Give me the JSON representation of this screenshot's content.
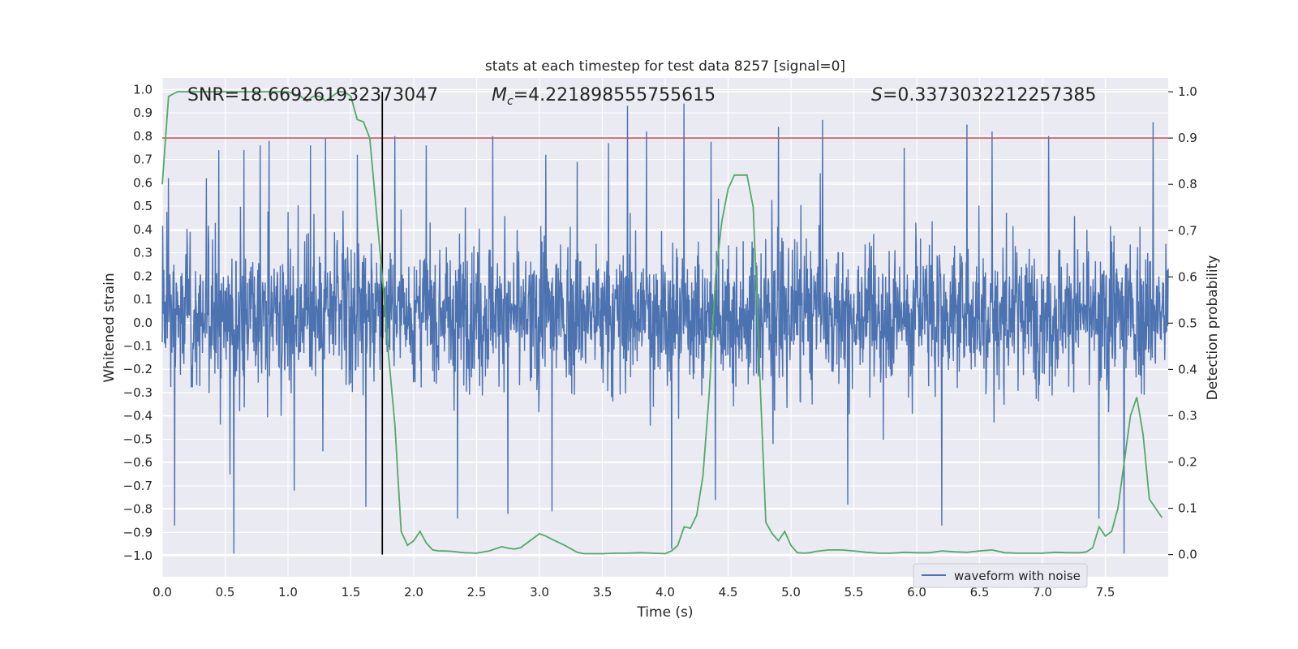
{
  "chart_data": {
    "type": "line",
    "title": "stats at each timestep for test data 8257 [signal=0]",
    "xlabel": "Time (s)",
    "ylabel_left": "Whitened strain",
    "ylabel_right": "Detection probability",
    "xlim": [
      0.0,
      8.0
    ],
    "ylim_left": [
      -1.09,
      1.05
    ],
    "ylim_right": [
      -0.048,
      1.03
    ],
    "x_ticks": [
      "0.0",
      "0.5",
      "1.0",
      "1.5",
      "2.0",
      "2.5",
      "3.0",
      "3.5",
      "4.0",
      "4.5",
      "5.0",
      "5.5",
      "6.0",
      "6.5",
      "7.0",
      "7.5"
    ],
    "y_left_ticks": [
      "1.0",
      "0.9",
      "0.8",
      "0.7",
      "0.6",
      "0.5",
      "0.4",
      "0.3",
      "0.2",
      "0.1",
      "0.0",
      "-0.1",
      "-0.2",
      "-0.3",
      "-0.4",
      "-0.5",
      "-0.6",
      "-0.7",
      "-0.8",
      "-0.9",
      "-1.0"
    ],
    "y_right_ticks": [
      "1.0",
      "0.9",
      "0.8",
      "0.7",
      "0.6",
      "0.5",
      "0.4",
      "0.3",
      "0.2",
      "0.1",
      "0.0"
    ],
    "annotations": {
      "snr": "SNR=18.669261932373047",
      "mc_symbol": "M",
      "mc_sub": "c",
      "mc_value": "=4.221898555755615",
      "s_symbol": "S",
      "s_value": "=0.3373032212257385"
    },
    "threshold": {
      "value": 0.9,
      "axis": "right",
      "color": "#c44e52"
    },
    "marker_time": 1.75,
    "legend": {
      "label": "waveform with noise",
      "placement": "lower-right"
    },
    "series": [
      {
        "name": "waveform with noise",
        "axis": "left",
        "color": "#4c72b0",
        "description": "dense whitened strain noise, typical envelope +/-0.6, peaks near +/-1.0",
        "envelope_typical": [
          -0.5,
          0.6
        ],
        "peaks": [
          {
            "x": 0.05,
            "y": 0.62
          },
          {
            "x": 0.1,
            "y": -0.87
          },
          {
            "x": 0.35,
            "y": 0.62
          },
          {
            "x": 0.45,
            "y": 0.74
          },
          {
            "x": 0.57,
            "y": -0.99
          },
          {
            "x": 0.65,
            "y": 0.74
          },
          {
            "x": 0.78,
            "y": 0.76
          },
          {
            "x": 0.85,
            "y": 0.78
          },
          {
            "x": 1.05,
            "y": -0.72
          },
          {
            "x": 1.18,
            "y": 0.76
          },
          {
            "x": 1.3,
            "y": 0.79
          },
          {
            "x": 1.55,
            "y": 0.72
          },
          {
            "x": 1.62,
            "y": -0.79
          },
          {
            "x": 1.85,
            "y": 0.8
          },
          {
            "x": 2.1,
            "y": 0.76
          },
          {
            "x": 2.35,
            "y": -0.84
          },
          {
            "x": 2.63,
            "y": 0.8
          },
          {
            "x": 2.75,
            "y": -0.82
          },
          {
            "x": 3.05,
            "y": 0.72
          },
          {
            "x": 3.1,
            "y": -0.81
          },
          {
            "x": 3.3,
            "y": 0.69
          },
          {
            "x": 3.55,
            "y": 0.77
          },
          {
            "x": 3.7,
            "y": 0.93
          },
          {
            "x": 3.85,
            "y": 0.82
          },
          {
            "x": 4.05,
            "y": -0.97
          },
          {
            "x": 4.15,
            "y": 0.94
          },
          {
            "x": 4.4,
            "y": -0.76
          },
          {
            "x": 4.9,
            "y": 0.84
          },
          {
            "x": 5.25,
            "y": 0.87
          },
          {
            "x": 5.45,
            "y": -0.78
          },
          {
            "x": 5.9,
            "y": 0.75
          },
          {
            "x": 6.2,
            "y": -0.87
          },
          {
            "x": 6.4,
            "y": 0.85
          },
          {
            "x": 6.6,
            "y": 0.82
          },
          {
            "x": 7.05,
            "y": 0.8
          },
          {
            "x": 7.45,
            "y": -0.84
          },
          {
            "x": 7.65,
            "y": -0.99
          },
          {
            "x": 7.88,
            "y": 0.86
          }
        ]
      },
      {
        "name": "detection probability",
        "axis": "right",
        "color": "#55a868",
        "x": [
          0.0,
          0.05,
          0.12,
          0.2,
          0.3,
          0.4,
          0.5,
          0.6,
          0.7,
          0.8,
          0.9,
          1.0,
          1.1,
          1.15,
          1.2,
          1.25,
          1.3,
          1.35,
          1.4,
          1.45,
          1.5,
          1.55,
          1.6,
          1.65,
          1.7,
          1.75,
          1.8,
          1.85,
          1.9,
          1.95,
          2.0,
          2.05,
          2.1,
          2.15,
          2.2,
          2.25,
          2.3,
          2.4,
          2.5,
          2.6,
          2.7,
          2.75,
          2.8,
          2.85,
          2.9,
          2.95,
          3.0,
          3.05,
          3.1,
          3.2,
          3.3,
          3.35,
          3.4,
          3.5,
          3.6,
          3.7,
          3.8,
          3.9,
          4.0,
          4.05,
          4.1,
          4.15,
          4.2,
          4.25,
          4.3,
          4.35,
          4.4,
          4.45,
          4.5,
          4.55,
          4.6,
          4.65,
          4.7,
          4.75,
          4.8,
          4.85,
          4.9,
          4.95,
          5.0,
          5.05,
          5.1,
          5.15,
          5.2,
          5.3,
          5.4,
          5.5,
          5.6,
          5.7,
          5.8,
          5.9,
          6.0,
          6.1,
          6.2,
          6.3,
          6.4,
          6.5,
          6.6,
          6.7,
          6.8,
          6.9,
          7.0,
          7.1,
          7.2,
          7.3,
          7.35,
          7.4,
          7.45,
          7.5,
          7.55,
          7.6,
          7.65,
          7.7,
          7.75,
          7.8,
          7.85,
          7.9,
          7.95
        ],
        "values": [
          0.8,
          0.99,
          1.0,
          1.0,
          1.0,
          1.0,
          1.0,
          1.0,
          1.0,
          1.0,
          1.0,
          1.0,
          0.99,
          0.98,
          0.99,
          0.99,
          0.98,
          0.99,
          1.0,
          1.0,
          0.99,
          0.94,
          0.935,
          0.9,
          0.75,
          0.6,
          0.43,
          0.28,
          0.05,
          0.02,
          0.03,
          0.05,
          0.025,
          0.01,
          0.008,
          0.008,
          0.007,
          0.004,
          0.003,
          0.008,
          0.017,
          0.014,
          0.012,
          0.015,
          0.025,
          0.035,
          0.045,
          0.04,
          0.033,
          0.02,
          0.005,
          0.002,
          0.002,
          0.002,
          0.003,
          0.003,
          0.004,
          0.003,
          0.002,
          0.008,
          0.02,
          0.06,
          0.057,
          0.085,
          0.17,
          0.35,
          0.6,
          0.72,
          0.79,
          0.82,
          0.82,
          0.82,
          0.75,
          0.4,
          0.07,
          0.045,
          0.03,
          0.05,
          0.02,
          0.004,
          0.003,
          0.004,
          0.007,
          0.01,
          0.01,
          0.008,
          0.005,
          0.003,
          0.003,
          0.005,
          0.004,
          0.004,
          0.008,
          0.006,
          0.005,
          0.008,
          0.01,
          0.004,
          0.003,
          0.003,
          0.003,
          0.005,
          0.004,
          0.004,
          0.006,
          0.015,
          0.06,
          0.04,
          0.05,
          0.1,
          0.2,
          0.3,
          0.34,
          0.26,
          0.12,
          0.1,
          0.08
        ]
      }
    ]
  }
}
